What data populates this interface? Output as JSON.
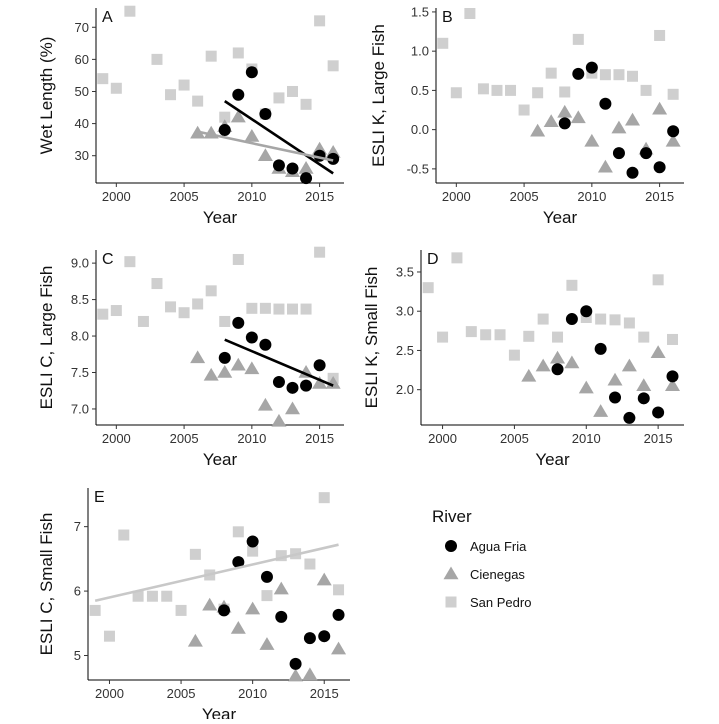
{
  "colors": {
    "Agua Fria": "#000000",
    "Cienegas": "#a6a6a6",
    "San Pedro": "#cfcfcf",
    "trend_Agua Fria": "#000000",
    "trend_Cienegas": "#a6a6a6",
    "trend_San Pedro": "#c8c8c8"
  },
  "legend": {
    "title": "River",
    "items": [
      {
        "name": "Agua Fria",
        "shape": "circle"
      },
      {
        "name": "Cienegas",
        "shape": "triangle"
      },
      {
        "name": "San Pedro",
        "shape": "square"
      }
    ]
  },
  "chart_data": [
    {
      "panel": "A",
      "type": "scatter",
      "xlabel": "Year",
      "ylabel": "Wet Length (%)",
      "xlim": [
        1998.5,
        2016.8
      ],
      "ylim": [
        21.5,
        76
      ],
      "xticks": [
        2000,
        2005,
        2010,
        2015
      ],
      "yticks": [
        30,
        40,
        50,
        60,
        70
      ],
      "series": [
        {
          "name": "San Pedro",
          "x": [
            1999,
            2000,
            2001,
            2003,
            2004,
            2005,
            2006,
            2007,
            2008,
            2009,
            2010,
            2011,
            2012,
            2013,
            2014,
            2015,
            2016
          ],
          "y": [
            54,
            51,
            75,
            60,
            49,
            52,
            47,
            61,
            42,
            62,
            57,
            43,
            48,
            50,
            46,
            72,
            58
          ]
        },
        {
          "name": "Cienegas",
          "x": [
            2006,
            2007,
            2008,
            2009,
            2010,
            2011,
            2012,
            2013,
            2014,
            2015,
            2016
          ],
          "y": [
            37,
            37,
            39,
            42,
            36,
            30,
            26,
            25,
            26,
            32,
            31
          ]
        },
        {
          "name": "Agua Fria",
          "x": [
            2008,
            2009,
            2010,
            2011,
            2012,
            2013,
            2014,
            2015,
            2016
          ],
          "y": [
            38,
            49,
            56,
            43,
            27,
            26,
            23,
            30,
            29
          ]
        }
      ],
      "trend_lines": [
        {
          "series": "Agua Fria",
          "x": [
            2008,
            2016
          ],
          "y": [
            47,
            24.5
          ]
        },
        {
          "series": "Cienegas",
          "x": [
            2006,
            2016
          ],
          "y": [
            37.5,
            28.5
          ]
        }
      ]
    },
    {
      "panel": "B",
      "type": "scatter",
      "xlabel": "Year",
      "ylabel": "ESLI K, Large Fish",
      "xlim": [
        1998.5,
        2016.8
      ],
      "ylim": [
        -0.68,
        1.55
      ],
      "xticks": [
        2000,
        2005,
        2010,
        2015
      ],
      "yticks": [
        -0.5,
        0.0,
        0.5,
        1.0,
        1.5
      ],
      "ytick_labels": [
        "-0.5",
        "0.0",
        "0.5",
        "1.0",
        "1.5"
      ],
      "series": [
        {
          "name": "San Pedro",
          "x": [
            1999,
            2000,
            2001,
            2002,
            2003,
            2004,
            2005,
            2006,
            2007,
            2008,
            2009,
            2010,
            2011,
            2012,
            2013,
            2014,
            2015,
            2016
          ],
          "y": [
            1.1,
            0.47,
            1.48,
            0.52,
            0.5,
            0.5,
            0.25,
            0.47,
            0.72,
            0.48,
            1.15,
            0.72,
            0.7,
            0.7,
            0.68,
            0.5,
            1.2,
            0.45
          ]
        },
        {
          "name": "Cienegas",
          "x": [
            2006,
            2007,
            2008,
            2009,
            2010,
            2011,
            2012,
            2013,
            2014,
            2015,
            2016
          ],
          "y": [
            -0.02,
            0.1,
            0.22,
            0.15,
            -0.15,
            -0.48,
            0.02,
            0.12,
            -0.25,
            0.26,
            -0.15
          ]
        },
        {
          "name": "Agua Fria",
          "x": [
            2008,
            2009,
            2010,
            2011,
            2012,
            2013,
            2014,
            2015,
            2016
          ],
          "y": [
            0.08,
            0.71,
            0.79,
            0.33,
            -0.3,
            -0.55,
            -0.3,
            -0.48,
            -0.02
          ]
        }
      ],
      "trend_lines": []
    },
    {
      "panel": "C",
      "type": "scatter",
      "xlabel": "Year",
      "ylabel": "ESLI C, Large Fish",
      "xlim": [
        1998.5,
        2016.8
      ],
      "ylim": [
        6.78,
        9.18
      ],
      "xticks": [
        2000,
        2005,
        2010,
        2015
      ],
      "yticks": [
        7.0,
        7.5,
        8.0,
        8.5,
        9.0
      ],
      "ytick_labels": [
        "7.0",
        "7.5",
        "8.0",
        "8.5",
        "9.0"
      ],
      "series": [
        {
          "name": "San Pedro",
          "x": [
            1999,
            2000,
            2001,
            2002,
            2003,
            2004,
            2005,
            2006,
            2007,
            2008,
            2009,
            2010,
            2011,
            2012,
            2013,
            2014,
            2015,
            2016
          ],
          "y": [
            8.3,
            8.35,
            9.02,
            8.2,
            8.72,
            8.4,
            8.32,
            8.44,
            8.62,
            8.2,
            9.05,
            8.38,
            8.38,
            8.37,
            8.37,
            8.37,
            9.15,
            7.42
          ]
        },
        {
          "name": "Cienegas",
          "x": [
            2006,
            2007,
            2008,
            2009,
            2010,
            2011,
            2012,
            2013,
            2014,
            2015,
            2016
          ],
          "y": [
            7.7,
            7.46,
            7.5,
            7.6,
            7.55,
            7.05,
            6.83,
            7.0,
            7.5,
            7.35,
            7.35
          ]
        },
        {
          "name": "Agua Fria",
          "x": [
            2008,
            2009,
            2010,
            2011,
            2012,
            2013,
            2014,
            2015
          ],
          "y": [
            7.7,
            8.18,
            7.98,
            7.88,
            7.37,
            7.29,
            7.32,
            7.6
          ]
        }
      ],
      "trend_lines": [
        {
          "series": "Agua Fria",
          "x": [
            2008,
            2016
          ],
          "y": [
            7.95,
            7.32
          ]
        }
      ]
    },
    {
      "panel": "D",
      "type": "scatter",
      "xlabel": "Year",
      "ylabel": "ESLI K, Small Fish",
      "xlim": [
        1998.5,
        2016.8
      ],
      "ylim": [
        1.55,
        3.78
      ],
      "xticks": [
        2000,
        2005,
        2010,
        2015
      ],
      "yticks": [
        2.0,
        2.5,
        3.0,
        3.5
      ],
      "ytick_labels": [
        "2.0",
        "2.5",
        "3.0",
        "3.5"
      ],
      "series": [
        {
          "name": "San Pedro",
          "x": [
            1999,
            2000,
            2001,
            2002,
            2003,
            2004,
            2005,
            2006,
            2007,
            2008,
            2009,
            2010,
            2011,
            2012,
            2013,
            2014,
            2015,
            2016
          ],
          "y": [
            3.3,
            2.67,
            3.68,
            2.74,
            2.7,
            2.7,
            2.44,
            2.68,
            2.9,
            2.67,
            3.33,
            2.92,
            2.9,
            2.89,
            2.85,
            2.67,
            3.4,
            2.64
          ]
        },
        {
          "name": "Cienegas",
          "x": [
            2006,
            2007,
            2008,
            2009,
            2010,
            2011,
            2012,
            2013,
            2014,
            2015,
            2016
          ],
          "y": [
            2.17,
            2.3,
            2.4,
            2.34,
            2.02,
            1.72,
            2.12,
            2.3,
            2.05,
            2.47,
            2.05
          ]
        },
        {
          "name": "Agua Fria",
          "x": [
            2008,
            2009,
            2010,
            2011,
            2012,
            2013,
            2014,
            2015,
            2016
          ],
          "y": [
            2.26,
            2.9,
            3.0,
            2.52,
            1.9,
            1.64,
            1.89,
            1.71,
            2.17
          ]
        }
      ],
      "trend_lines": []
    },
    {
      "panel": "E",
      "type": "scatter",
      "xlabel": "Year",
      "ylabel": "ESLI C, Small Fish",
      "xlim": [
        1998.5,
        2016.8
      ],
      "ylim": [
        4.62,
        7.6
      ],
      "xticks": [
        2000,
        2005,
        2010,
        2015
      ],
      "yticks": [
        5,
        6,
        7
      ],
      "series": [
        {
          "name": "San Pedro",
          "x": [
            1999,
            2000,
            2001,
            2002,
            2003,
            2004,
            2005,
            2006,
            2007,
            2008,
            2009,
            2010,
            2011,
            2012,
            2013,
            2014,
            2015,
            2016
          ],
          "y": [
            5.7,
            5.3,
            6.87,
            5.92,
            5.92,
            5.92,
            5.7,
            6.57,
            6.25,
            5.72,
            6.92,
            6.62,
            5.93,
            6.55,
            6.58,
            6.42,
            7.45,
            6.02
          ]
        },
        {
          "name": "Cienegas",
          "x": [
            2006,
            2007,
            2008,
            2009,
            2010,
            2011,
            2012,
            2013,
            2014,
            2015,
            2016
          ],
          "y": [
            5.22,
            5.78,
            5.75,
            5.42,
            5.72,
            5.17,
            6.03,
            4.68,
            4.7,
            6.17,
            5.1
          ]
        },
        {
          "name": "Agua Fria",
          "x": [
            2008,
            2009,
            2010,
            2011,
            2012,
            2013,
            2014,
            2015,
            2016
          ],
          "y": [
            5.7,
            6.45,
            6.77,
            6.22,
            5.6,
            4.87,
            5.27,
            5.3,
            5.63
          ]
        }
      ],
      "trend_lines": [
        {
          "series": "San Pedro",
          "x": [
            1999,
            2016
          ],
          "y": [
            5.85,
            6.72
          ]
        }
      ]
    }
  ]
}
